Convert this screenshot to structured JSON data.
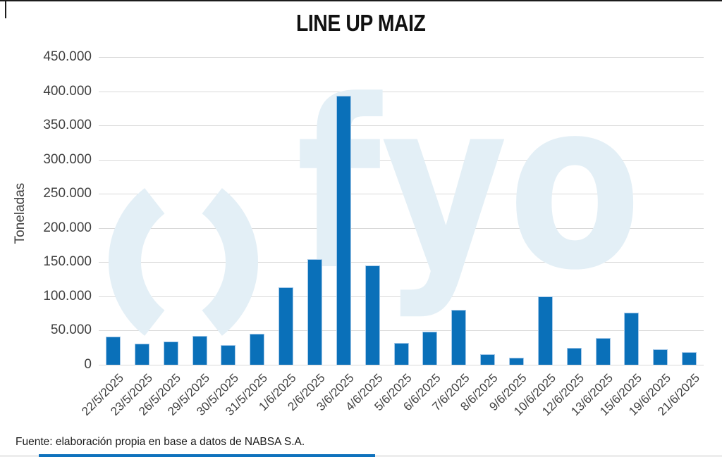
{
  "chart_data": {
    "type": "bar",
    "title": "LINE UP MAIZ",
    "ylabel": "Toneladas",
    "xlabel": "",
    "categories": [
      "22/5/2025",
      "23/5/2025",
      "26/5/2025",
      "29/5/2025",
      "30/5/2025",
      "31/5/2025",
      "1/6/2025",
      "2/6/2025",
      "3/6/2025",
      "4/6/2025",
      "5/6/2025",
      "6/6/2025",
      "7/6/2025",
      "8/6/2025",
      "9/6/2025",
      "10/6/2025",
      "12/6/2025",
      "13/6/2025",
      "15/6/2025",
      "19/6/2025",
      "21/6/2025"
    ],
    "values": [
      41000,
      31000,
      34000,
      42000,
      29000,
      45000,
      113000,
      154000,
      393000,
      145000,
      32000,
      48000,
      80000,
      15000,
      10000,
      100000,
      25000,
      39000,
      76000,
      23000,
      19000
    ],
    "ylim": [
      0,
      450000
    ],
    "ytick_step": 50000,
    "ytick_labels": [
      "0",
      "50.000",
      "100.000",
      "150.000",
      "200.000",
      "250.000",
      "300.000",
      "350.000",
      "400.000",
      "450.000"
    ],
    "grid": true,
    "legend": false,
    "colors": {
      "bar_fill": "#0a70b9",
      "bar_border": "#a5c9e9",
      "gridline": "#d9d9d9",
      "axis_text": "#3f3f3f",
      "title_text": "#111111"
    },
    "watermark": {
      "text": "fyo",
      "color": "#e3eff6"
    }
  },
  "footer": {
    "text": "Fuente: elaboración propia en base a datos de NABSA S.A."
  },
  "accent": {
    "color": "#0f72bd"
  }
}
